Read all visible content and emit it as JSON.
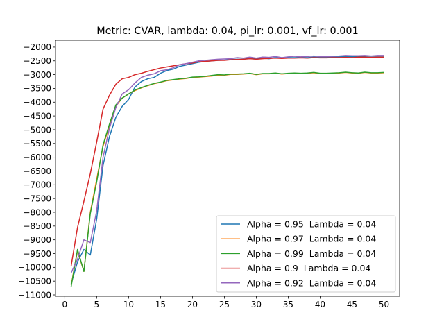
{
  "chart_data": {
    "type": "line",
    "title": "Metric: CVAR, lambda: 0.04, pi_lr: 0.001, vf_lr: 0.001",
    "xlabel": "",
    "ylabel": "",
    "xlim": [
      -1.45,
      52.45
    ],
    "ylim": [
      -11050,
      -1750
    ],
    "xticks": [
      0,
      5,
      10,
      15,
      20,
      25,
      30,
      35,
      40,
      45,
      50
    ],
    "yticks": [
      -11000,
      -10500,
      -10000,
      -9500,
      -9000,
      -8500,
      -8000,
      -7500,
      -7000,
      -6500,
      -6000,
      -5500,
      -5000,
      -4500,
      -4000,
      -3500,
      -3000,
      -2500,
      -2000
    ],
    "grid": false,
    "legend_position": "lower-right",
    "x": [
      1,
      2,
      3,
      4,
      5,
      6,
      7,
      8,
      9,
      10,
      11,
      12,
      13,
      14,
      15,
      16,
      17,
      18,
      19,
      20,
      21,
      22,
      23,
      24,
      25,
      26,
      27,
      28,
      29,
      30,
      31,
      32,
      33,
      34,
      35,
      36,
      37,
      38,
      39,
      40,
      41,
      42,
      43,
      44,
      45,
      46,
      47,
      48,
      49,
      50
    ],
    "series": [
      {
        "name": "Alpha = 0.95  Lambda = 0.04",
        "color": "#1f77b4",
        "values": [
          -10600,
          -9800,
          -9350,
          -9550,
          -8250,
          -6300,
          -5250,
          -4550,
          -4150,
          -3900,
          -3450,
          -3250,
          -3150,
          -3100,
          -2950,
          -2850,
          -2800,
          -2700,
          -2650,
          -2600,
          -2550,
          -2520,
          -2500,
          -2480,
          -2470,
          -2450,
          -2440,
          -2440,
          -2400,
          -2430,
          -2400,
          -2420,
          -2380,
          -2400,
          -2380,
          -2380,
          -2370,
          -2380,
          -2360,
          -2370,
          -2360,
          -2360,
          -2350,
          -2340,
          -2350,
          -2330,
          -2320,
          -2330,
          -2320,
          -2320
        ]
      },
      {
        "name": "Alpha = 0.97  Lambda = 0.04",
        "color": "#ff7f0e",
        "values": [
          -10650,
          -9400,
          -10150,
          -8000,
          -6800,
          -5600,
          -4850,
          -4150,
          -3850,
          -3700,
          -3580,
          -3480,
          -3400,
          -3330,
          -3280,
          -3220,
          -3190,
          -3160,
          -3140,
          -3100,
          -3090,
          -3070,
          -3050,
          -3020,
          -3020,
          -2990,
          -2990,
          -2980,
          -2960,
          -3000,
          -2970,
          -2970,
          -2950,
          -2980,
          -2960,
          -2950,
          -2960,
          -2950,
          -2930,
          -2960,
          -2960,
          -2950,
          -2940,
          -2920,
          -2940,
          -2950,
          -2920,
          -2940,
          -2940,
          -2930
        ]
      },
      {
        "name": "Alpha = 0.99  Lambda = 0.04",
        "color": "#2ca02c",
        "values": [
          -10700,
          -9350,
          -10150,
          -8050,
          -6900,
          -5550,
          -4800,
          -4100,
          -3850,
          -3700,
          -3560,
          -3470,
          -3390,
          -3320,
          -3270,
          -3210,
          -3180,
          -3150,
          -3130,
          -3090,
          -3080,
          -3060,
          -3030,
          -3000,
          -3010,
          -2980,
          -2980,
          -2970,
          -2950,
          -2990,
          -2960,
          -2960,
          -2940,
          -2970,
          -2950,
          -2940,
          -2950,
          -2940,
          -2920,
          -2950,
          -2950,
          -2940,
          -2930,
          -2910,
          -2930,
          -2940,
          -2910,
          -2930,
          -2930,
          -2920
        ]
      },
      {
        "name": "Alpha = 0.9  Lambda = 0.04",
        "color": "#d62728",
        "values": [
          -9950,
          -8550,
          -7600,
          -6600,
          -5450,
          -4250,
          -3750,
          -3350,
          -3150,
          -3100,
          -3000,
          -2950,
          -2880,
          -2820,
          -2760,
          -2720,
          -2680,
          -2640,
          -2600,
          -2580,
          -2530,
          -2520,
          -2500,
          -2480,
          -2480,
          -2460,
          -2450,
          -2440,
          -2420,
          -2440,
          -2420,
          -2410,
          -2400,
          -2410,
          -2400,
          -2400,
          -2390,
          -2400,
          -2380,
          -2390,
          -2390,
          -2380,
          -2380,
          -2370,
          -2380,
          -2360,
          -2360,
          -2370,
          -2360,
          -2360
        ]
      },
      {
        "name": "Alpha = 0.92  Lambda = 0.04",
        "color": "#9467bd",
        "values": [
          -10200,
          -9700,
          -9000,
          -9100,
          -7950,
          -6000,
          -4950,
          -4200,
          -3700,
          -3550,
          -3300,
          -3100,
          -3020,
          -2970,
          -2860,
          -2820,
          -2750,
          -2640,
          -2600,
          -2550,
          -2500,
          -2480,
          -2460,
          -2440,
          -2430,
          -2420,
          -2380,
          -2400,
          -2360,
          -2400,
          -2360,
          -2370,
          -2340,
          -2380,
          -2350,
          -2330,
          -2350,
          -2340,
          -2320,
          -2340,
          -2340,
          -2330,
          -2320,
          -2300,
          -2310,
          -2310,
          -2300,
          -2320,
          -2300,
          -2300
        ]
      }
    ]
  }
}
